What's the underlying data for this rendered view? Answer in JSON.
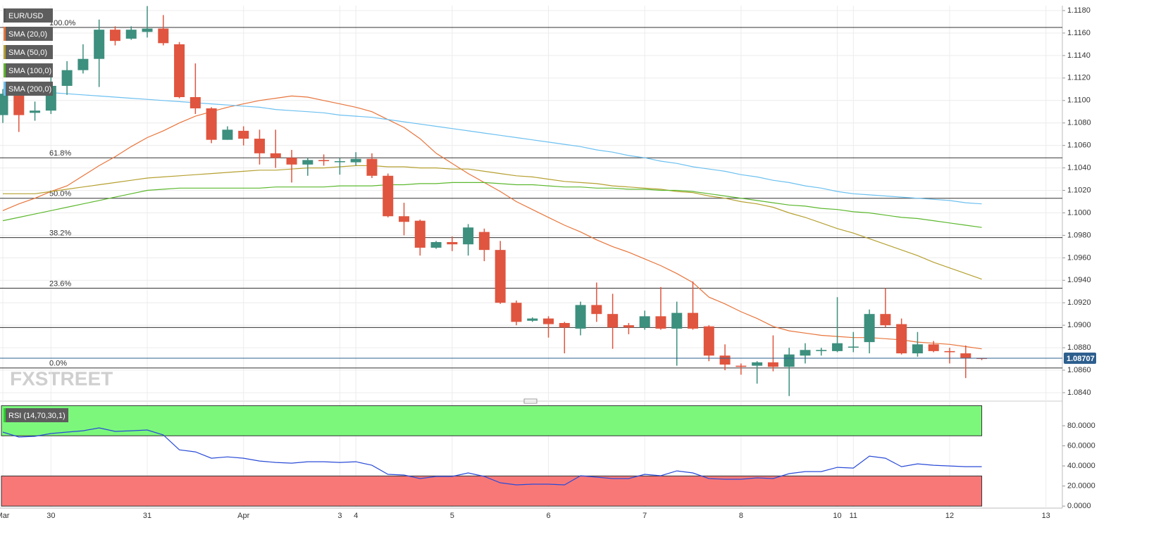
{
  "chart_data": [
    {
      "type": "candlestick",
      "symbol": "EUR/USD",
      "watermark": "FXSTREET",
      "grid": true,
      "colors": {
        "up": "#3d8f7e",
        "down": "#e0553f"
      },
      "categories": [
        "Mar",
        null,
        null,
        "30",
        null,
        null,
        null,
        null,
        null,
        "31",
        null,
        null,
        null,
        null,
        null,
        "Apr",
        null,
        null,
        null,
        null,
        null,
        "3",
        "4",
        null,
        null,
        null,
        null,
        null,
        "5",
        null,
        null,
        null,
        null,
        null,
        "6",
        null,
        null,
        null,
        null,
        null,
        "7",
        null,
        null,
        null,
        null,
        null,
        "8",
        null,
        null,
        null,
        null,
        null,
        "10",
        "11",
        null,
        null,
        null,
        null,
        null,
        "12",
        null,
        null,
        null,
        null,
        null,
        "13"
      ],
      "open": [
        1.1087,
        1.1108,
        1.1089,
        1.1091,
        1.1113,
        1.1127,
        1.1137,
        1.1163,
        1.1155,
        1.1161,
        1.1164,
        1.115,
        1.1103,
        1.1093,
        1.1065,
        1.1073,
        1.1066,
        1.1053,
        1.1049,
        1.1043,
        1.1047,
        1.1046,
        1.1045,
        1.1048,
        1.1033,
        1.0997,
        1.0993,
        1.0969,
        1.0974,
        1.0972,
        1.0983,
        1.0967,
        1.092,
        1.0904,
        1.0906,
        1.0902,
        1.0897,
        1.0918,
        1.091,
        1.09,
        1.0898,
        1.0908,
        1.0897,
        1.0911,
        1.0899,
        1.0873,
        1.0864,
        1.0864,
        1.0867,
        1.0863,
        1.0873,
        1.0877,
        1.0877,
        1.0881,
        1.0885,
        1.091,
        1.0901,
        1.0875,
        1.0883,
        1.0877,
        1.0875,
        1.0871,
        null,
        null,
        null,
        null
      ],
      "high": [
        1.111,
        1.1112,
        1.1099,
        1.1122,
        1.1135,
        1.115,
        1.1172,
        1.1166,
        1.1166,
        1.1184,
        1.1176,
        1.1152,
        1.1133,
        1.1094,
        1.1077,
        1.1077,
        1.1074,
        1.1074,
        1.1056,
        1.1049,
        1.1052,
        1.1049,
        1.1054,
        1.1053,
        1.1035,
        1.1009,
        1.0994,
        1.0975,
        1.0979,
        1.099,
        1.0986,
        1.0975,
        1.0922,
        1.0907,
        1.0908,
        1.0903,
        1.0921,
        1.0938,
        1.0928,
        1.0902,
        1.0913,
        1.0934,
        1.0921,
        1.0939,
        1.09,
        1.0883,
        1.0866,
        1.0868,
        1.0891,
        1.088,
        1.0884,
        1.088,
        1.0925,
        1.0894,
        1.0914,
        1.0933,
        1.0906,
        1.0894,
        1.0886,
        1.088,
        1.0882,
        1.0871,
        null,
        null,
        null,
        null
      ],
      "low": [
        1.108,
        1.1072,
        1.1082,
        1.1088,
        1.1105,
        1.1124,
        1.1112,
        1.1149,
        1.1154,
        1.1156,
        1.1149,
        1.1102,
        1.1088,
        1.1062,
        1.1065,
        1.106,
        1.1043,
        1.104,
        1.1027,
        1.1033,
        1.1042,
        1.1034,
        1.1042,
        1.1031,
        1.0996,
        1.098,
        1.0962,
        1.0968,
        1.0966,
        1.0962,
        1.0957,
        1.0919,
        1.09,
        1.0903,
        1.0889,
        1.0875,
        1.0891,
        1.0903,
        1.0879,
        1.0892,
        1.0896,
        1.0896,
        1.0864,
        1.0896,
        1.0868,
        1.086,
        1.0856,
        1.0848,
        1.0859,
        1.0837,
        1.0866,
        1.0873,
        1.0876,
        1.0876,
        1.0875,
        1.0898,
        1.0874,
        1.0872,
        1.0876,
        1.0866,
        1.0853,
        1.0869,
        null,
        null,
        null,
        null
      ],
      "close": [
        1.1106,
        1.1087,
        1.1091,
        1.1113,
        1.1127,
        1.1137,
        1.1163,
        1.1153,
        1.1163,
        1.1164,
        1.1151,
        1.1103,
        1.1093,
        1.1065,
        1.1074,
        1.1066,
        1.1053,
        1.1049,
        1.1043,
        1.1047,
        1.1046,
        1.1046,
        1.1048,
        1.1033,
        1.0997,
        1.0992,
        1.0969,
        1.0974,
        1.0972,
        1.0987,
        1.0967,
        1.092,
        1.0903,
        1.0906,
        1.0901,
        1.0898,
        1.0918,
        1.091,
        1.0898,
        1.0898,
        1.0908,
        1.0897,
        1.0911,
        1.0897,
        1.0873,
        1.0865,
        1.0863,
        1.0867,
        1.0863,
        1.0874,
        1.0878,
        1.0878,
        1.0884,
        1.0881,
        1.091,
        1.09,
        1.0875,
        1.0883,
        1.0877,
        1.0876,
        1.0871,
        1.087,
        null,
        null,
        null,
        null
      ],
      "series": [
        {
          "name": "SMA (20,0)",
          "color": "#e8743b",
          "values": [
            1.1002,
            1.1008,
            1.1013,
            1.1019,
            1.1024,
            1.1033,
            1.1042,
            1.105,
            1.1059,
            1.1067,
            1.1073,
            1.108,
            1.1086,
            1.109,
            1.1094,
            1.1097,
            1.11,
            1.1102,
            1.1104,
            1.1103,
            1.11,
            1.1097,
            1.1094,
            1.109,
            1.1083,
            1.1076,
            1.1066,
            1.1053,
            1.1044,
            1.1035,
            1.1027,
            1.1019,
            1.101,
            1.1003,
            1.0996,
            1.0989,
            1.0983,
            1.0976,
            1.097,
            1.0965,
            1.0959,
            1.0953,
            1.0946,
            1.0938,
            1.0925,
            1.0919,
            1.0912,
            1.0906,
            1.0899,
            1.0895,
            1.0893,
            1.0891,
            1.089,
            1.0889,
            1.0889,
            1.0888,
            1.0887,
            1.0885,
            1.0884,
            1.0883,
            1.0881,
            1.0879,
            null,
            null,
            null,
            null
          ]
        },
        {
          "name": "SMA (50,0)",
          "color": "#b5a030",
          "values": [
            1.1017,
            1.1017,
            1.1017,
            1.1019,
            1.1021,
            1.1023,
            1.1025,
            1.1027,
            1.1029,
            1.1031,
            1.1032,
            1.1033,
            1.1034,
            1.1035,
            1.1036,
            1.1037,
            1.1038,
            1.1038,
            1.1039,
            1.104,
            1.104,
            1.1041,
            1.1042,
            1.1042,
            1.1041,
            1.1041,
            1.104,
            1.104,
            1.1039,
            1.1039,
            1.1037,
            1.1035,
            1.1033,
            1.1032,
            1.103,
            1.1028,
            1.1027,
            1.1026,
            1.1024,
            1.1023,
            1.1022,
            1.1021,
            1.1019,
            1.1018,
            1.1015,
            1.1013,
            1.101,
            1.1008,
            1.1005,
            1.1,
            1.0996,
            1.0991,
            1.0986,
            1.0982,
            1.0977,
            1.0972,
            1.0967,
            1.0962,
            1.0956,
            1.0951,
            1.0946,
            1.0941,
            null,
            null,
            null,
            null
          ]
        },
        {
          "name": "SMA (100,0)",
          "color": "#5cb82e",
          "values": [
            1.0993,
            1.0996,
            1.0999,
            1.1002,
            1.1005,
            1.1008,
            1.1011,
            1.1014,
            1.1017,
            1.102,
            1.1021,
            1.1022,
            1.1022,
            1.1022,
            1.1022,
            1.1022,
            1.1022,
            1.1023,
            1.1023,
            1.1023,
            1.1023,
            1.1024,
            1.1024,
            1.1024,
            1.1025,
            1.1025,
            1.1026,
            1.1026,
            1.1027,
            1.1027,
            1.1027,
            1.1026,
            1.1025,
            1.1025,
            1.1024,
            1.1023,
            1.1023,
            1.1022,
            1.1022,
            1.1021,
            1.1021,
            1.102,
            1.102,
            1.1019,
            1.1017,
            1.1015,
            1.1013,
            1.1011,
            1.1009,
            1.1007,
            1.1006,
            1.1004,
            1.1003,
            1.1001,
            1.1,
            1.0998,
            1.0996,
            1.0995,
            1.0993,
            1.0991,
            1.0989,
            1.0987,
            null,
            null,
            null,
            null
          ]
        },
        {
          "name": "SMA (200,0)",
          "color": "#6cc0f0",
          "values": [
            1.111,
            1.1109,
            1.1108,
            1.1107,
            1.1106,
            1.1105,
            1.1104,
            1.1103,
            1.1102,
            1.1101,
            1.11,
            1.1099,
            1.1098,
            1.1097,
            1.1096,
            1.1095,
            1.1094,
            1.1092,
            1.1091,
            1.109,
            1.1089,
            1.1087,
            1.1086,
            1.1085,
            1.1083,
            1.1081,
            1.1079,
            1.1077,
            1.1075,
            1.1073,
            1.1071,
            1.1069,
            1.1067,
            1.1065,
            1.1063,
            1.1061,
            1.1059,
            1.1056,
            1.1054,
            1.1051,
            1.1049,
            1.1046,
            1.1044,
            1.1041,
            1.1039,
            1.1037,
            1.1034,
            1.1032,
            1.1029,
            1.1027,
            1.1024,
            1.1022,
            1.1019,
            1.1017,
            1.1016,
            1.1015,
            1.1014,
            1.1013,
            1.1012,
            1.1011,
            1.1009,
            1.1008,
            null,
            null,
            null,
            null
          ]
        }
      ],
      "fib_levels": [
        {
          "value": 1.1165,
          "label": "100.0%"
        },
        {
          "value": 1.1049,
          "label": "61.8%"
        },
        {
          "value": 1.1013,
          "label": "50.0%"
        },
        {
          "value": 1.0978,
          "label": "38.2%"
        },
        {
          "value": 1.0933,
          "label": "23.6%"
        },
        {
          "value": 1.0862,
          "label": "0.0%"
        }
      ],
      "levels": [
        1.0898
      ],
      "last_price": 1.08707,
      "ylim": [
        1.08356,
        1.11844
      ],
      "yticks": [
        {
          "value": 1.084,
          "label": "1.0840"
        },
        {
          "value": 1.086,
          "label": "1.0860"
        },
        {
          "value": 1.088,
          "label": "1.0880"
        },
        {
          "value": 1.09,
          "label": "1.0900"
        },
        {
          "value": 1.092,
          "label": "1.0920"
        },
        {
          "value": 1.094,
          "label": "1.0940"
        },
        {
          "value": 1.096,
          "label": "1.0960"
        },
        {
          "value": 1.098,
          "label": "1.0980"
        },
        {
          "value": 1.1,
          "label": "1.1000"
        },
        {
          "value": 1.102,
          "label": "1.1020"
        },
        {
          "value": 1.104,
          "label": "1.1040"
        },
        {
          "value": 1.106,
          "label": "1.1060"
        },
        {
          "value": 1.108,
          "label": "1.1080"
        },
        {
          "value": 1.11,
          "label": "1.1100"
        },
        {
          "value": 1.112,
          "label": "1.1120"
        },
        {
          "value": 1.114,
          "label": "1.1140"
        },
        {
          "value": 1.116,
          "label": "1.1160"
        },
        {
          "value": 1.118,
          "label": "1.1180"
        }
      ]
    },
    {
      "type": "line",
      "series": [
        {
          "name": "RSI (14,70,30,1)",
          "color": "#2a4bd7",
          "values": [
            73.7,
            68.8,
            69.5,
            72.3,
            73.7,
            75.0,
            77.9,
            74.4,
            75.0,
            75.8,
            70.9,
            56.0,
            54.0,
            47.7,
            49.0,
            47.7,
            44.9,
            43.5,
            42.8,
            44.2,
            44.2,
            43.5,
            44.2,
            40.7,
            31.6,
            30.9,
            27.4,
            29.5,
            29.5,
            33.0,
            29.5,
            23.2,
            21.1,
            21.8,
            21.8,
            21.1,
            30.2,
            28.8,
            27.4,
            27.4,
            31.6,
            30.2,
            35.1,
            33.0,
            27.4,
            26.7,
            26.7,
            28.1,
            27.4,
            32.3,
            34.4,
            34.4,
            38.6,
            37.9,
            49.8,
            47.7,
            39.3,
            42.1,
            40.7,
            40.0,
            39.3,
            39.3,
            null,
            null,
            null,
            null
          ]
        }
      ],
      "zones": [
        {
          "range": [
            70,
            100
          ],
          "color": "#7cf77c"
        },
        {
          "range": [
            0,
            30
          ],
          "color": "#f87878"
        }
      ],
      "ylim": [
        -2,
        101
      ],
      "yticks": [
        {
          "value": 0,
          "label": "0.0000"
        },
        {
          "value": 20,
          "label": "20.0000"
        },
        {
          "value": 40,
          "label": "40.0000"
        },
        {
          "value": 60,
          "label": "60.0000"
        },
        {
          "value": 80,
          "label": "80.0000"
        }
      ]
    }
  ]
}
